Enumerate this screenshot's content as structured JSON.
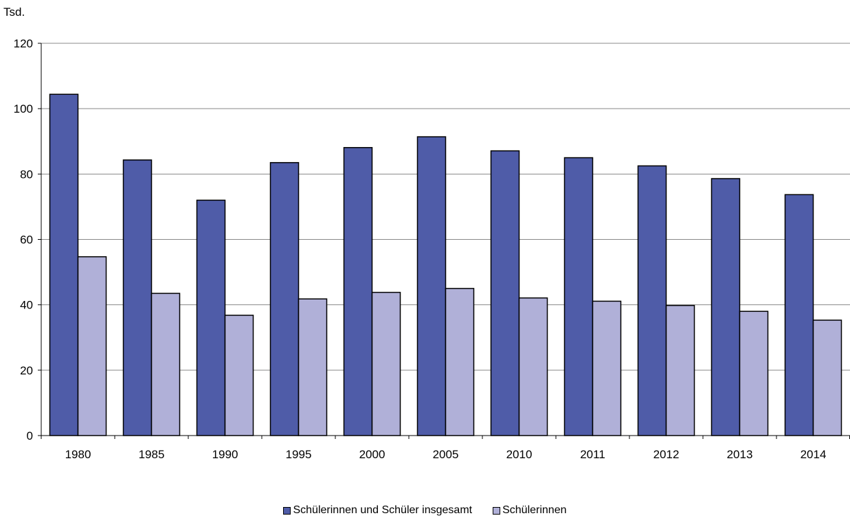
{
  "chart_data": {
    "type": "bar",
    "title": "",
    "unit_label": "Tsd.",
    "xlabel": "",
    "ylabel": "",
    "categories": [
      "1980",
      "1985",
      "1990",
      "1995",
      "2000",
      "2005",
      "2010",
      "2011",
      "2012",
      "2013",
      "2014"
    ],
    "series": [
      {
        "name": "Schülerinnen und Schüler insgesamt",
        "color": "#4f5ca8",
        "values": [
          104.4,
          84.3,
          72.0,
          83.5,
          88.1,
          91.4,
          87.1,
          85.0,
          82.5,
          78.6,
          73.7
        ]
      },
      {
        "name": "Schülerinnen",
        "color": "#b0b0d8",
        "values": [
          54.7,
          43.5,
          36.8,
          41.8,
          43.8,
          45.0,
          42.1,
          41.1,
          39.8,
          38.0,
          35.3
        ]
      }
    ],
    "ylim": [
      0,
      120
    ],
    "yticks": [
      0,
      20,
      40,
      60,
      80,
      100,
      120
    ],
    "grid": true,
    "legend_position": "bottom"
  }
}
